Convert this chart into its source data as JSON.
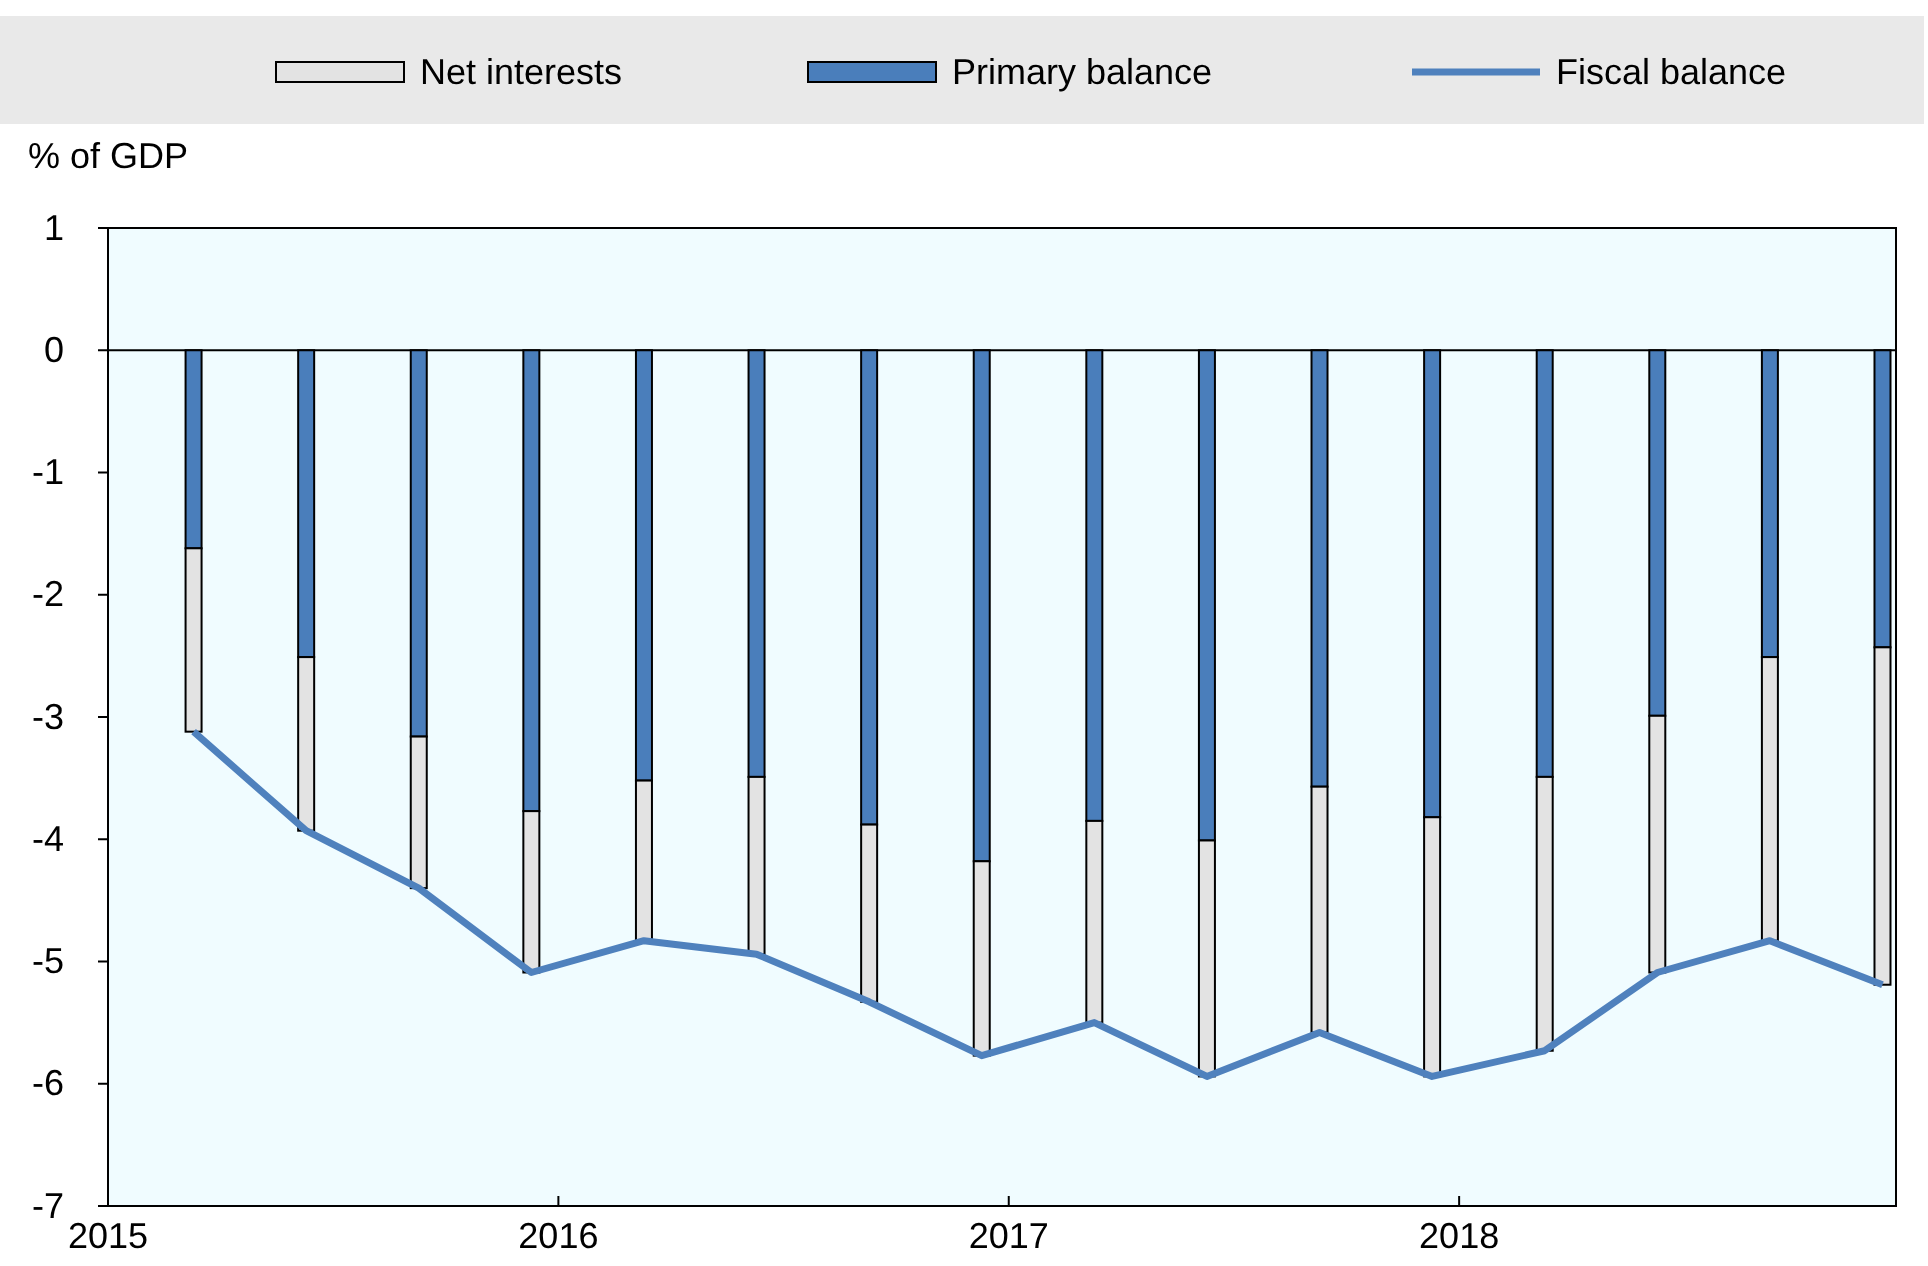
{
  "chart_data": {
    "type": "bar",
    "stacked": true,
    "ylabel": "% of GDP",
    "x": [
      2015.19,
      2015.44,
      2015.69,
      2015.94,
      2016.19,
      2016.44,
      2016.69,
      2016.94,
      2017.19,
      2017.44,
      2017.69,
      2017.94,
      2018.19,
      2018.44,
      2018.69,
      2018.94
    ],
    "xlim": [
      2015,
      2018.97
    ],
    "xticks": [
      2015,
      2016,
      2017,
      2018
    ],
    "ylim": [
      -7,
      1
    ],
    "yticks": [
      -7,
      -6,
      -5,
      -4,
      -3,
      -2,
      -1,
      0,
      1
    ],
    "legend": "top",
    "grid": false,
    "ref_lines": [
      {
        "axis": "y",
        "value": 0,
        "color": "#000000"
      }
    ],
    "series": [
      {
        "name": "Primary balance",
        "color": "#4a7ebb",
        "values": [
          -1.62,
          -2.51,
          -3.16,
          -3.77,
          -3.52,
          -3.49,
          -3.88,
          -4.18,
          -3.85,
          -4.01,
          -3.57,
          -3.82,
          -3.49,
          -2.99,
          -2.51,
          -2.43
        ]
      },
      {
        "name": "Net interests",
        "color": "#e3e3e3",
        "values": [
          -1.5,
          -1.42,
          -1.24,
          -1.32,
          -1.31,
          -1.45,
          -1.45,
          -1.59,
          -1.65,
          -1.93,
          -2.01,
          -2.12,
          -2.24,
          -2.1,
          -2.32,
          -2.76
        ]
      },
      {
        "name": "Fiscal balance",
        "type": "line",
        "color": "#4f81bd",
        "marker": "none",
        "values": [
          -3.12,
          -3.93,
          -4.4,
          -5.09,
          -4.83,
          -4.94,
          -5.33,
          -5.77,
          -5.5,
          -5.94,
          -5.58,
          -5.94,
          -5.73,
          -5.09,
          -4.83,
          -5.19
        ]
      }
    ]
  }
}
